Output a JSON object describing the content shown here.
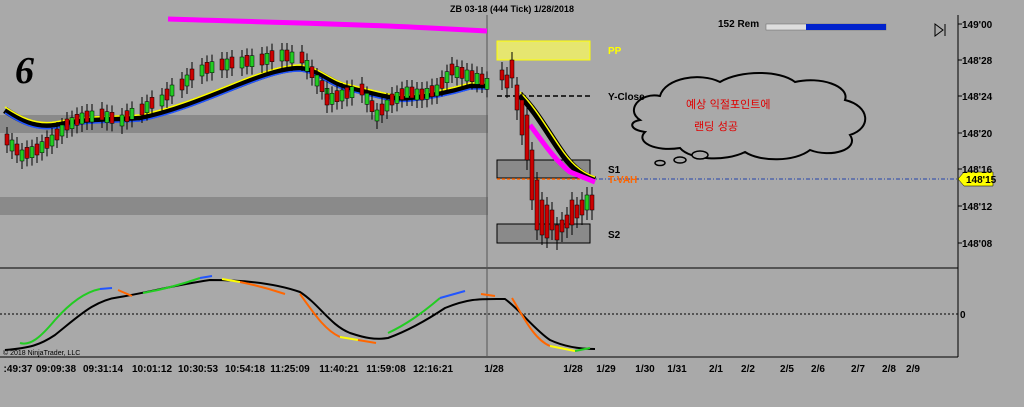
{
  "title": "ZB 03-18 (444 Tick)  1/28/2018",
  "corner_label": "6",
  "bars_remaining": "152 Rem",
  "copyright": "© 2018 NinjaTrader, LLC",
  "price_tag": "148'15",
  "cloud_text": [
    "예상 익절포인트에",
    "랜딩 성공"
  ],
  "colors": {
    "background": "#a9a9a9",
    "up": "#22cc22",
    "down": "#cc0000",
    "magenta": "#ff00ff",
    "pp": "#ffff66",
    "grid": "#000000"
  },
  "chart_data": [
    {
      "type": "candlestick",
      "y_ticks": [
        "149'00",
        "148'28",
        "148'24",
        "148'20",
        "148'16",
        "148'12",
        "148'08"
      ],
      "x_ticks": [
        ":49:37",
        "09:09:38",
        "09:31:14",
        "10:01:12",
        "10:30:53",
        "10:54:18",
        "11:25:09",
        "11:40:21",
        "11:59:08",
        "12:16:21",
        "1/28",
        "1/28",
        "1/29",
        "1/30",
        "1/31",
        "2/1",
        "2/2",
        "2/5",
        "2/6",
        "2/7",
        "2/8",
        "2/9"
      ],
      "levels": [
        {
          "name": "PP",
          "color": "#ffff00"
        },
        {
          "name": "Y-Close",
          "color": "#000000"
        },
        {
          "name": "S1",
          "color": "#000000"
        },
        {
          "name": "T-VAH",
          "color": "#ff6600"
        },
        {
          "name": "S2",
          "color": "#000000"
        }
      ]
    },
    {
      "type": "line",
      "y_ticks": [
        "0"
      ]
    }
  ]
}
